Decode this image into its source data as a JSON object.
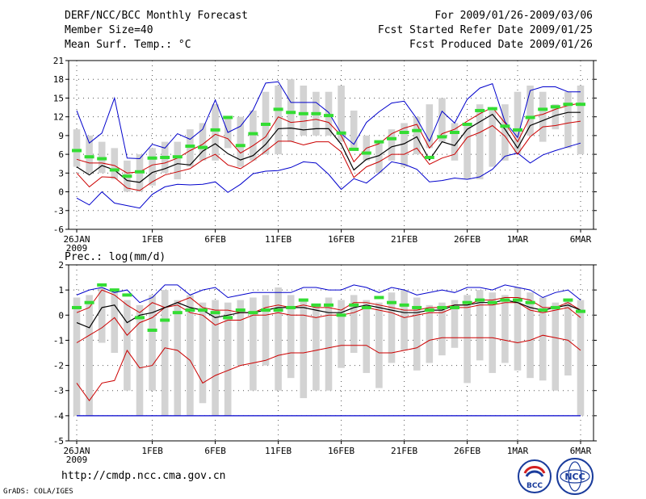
{
  "header": {
    "title": "DERF/NCC/BCC Monthly Forecast",
    "member_size": "Member Size=40",
    "variable": "Mean Surf. Temp.: °C",
    "period": "For 2009/01/26-2009/03/06",
    "fcst_started": "Fcst Started Refer Date 2009/01/25",
    "fcst_produced": "Fcst Produced Date 2009/01/26"
  },
  "footer": {
    "url": "http://cmdp.ncc.cma.gov.cn",
    "grads": "GrADS: COLA/IGES",
    "logo_left_text": "BCC",
    "logo_right_text": "NCC"
  },
  "colors": {
    "box": "#d3d3d3",
    "median": "#33dd33",
    "mean": "#000000",
    "sd": "#cc0000",
    "envelope": "#0000cc",
    "grid": "#555555"
  },
  "chart_data": [
    {
      "type": "box-line",
      "title": "Mean Surf. Temp.: °C",
      "x_tick_labels": [
        "26JAN",
        "1FEB",
        "6FEB",
        "11FEB",
        "16FEB",
        "21FEB",
        "26FEB",
        "1MAR",
        "6MAR"
      ],
      "x_tick_days": [
        0,
        6,
        11,
        16,
        21,
        26,
        31,
        35,
        40
      ],
      "x_year_label": "2009",
      "ylim": [
        -6,
        21
      ],
      "yticks": [
        -6,
        -3,
        0,
        3,
        6,
        9,
        12,
        15,
        18,
        21
      ],
      "grid": true,
      "days": [
        0,
        1,
        2,
        3,
        4,
        5,
        6,
        7,
        8,
        9,
        10,
        11,
        12,
        13,
        14,
        15,
        16,
        17,
        18,
        19,
        20,
        21,
        22,
        23,
        24,
        25,
        26,
        27,
        28,
        29,
        30,
        31,
        32,
        33,
        34,
        35,
        36,
        37,
        38,
        39,
        40
      ],
      "box_low": [
        4,
        3,
        3,
        2,
        0,
        0,
        1,
        3,
        2,
        4,
        5,
        5,
        7,
        4,
        5,
        6,
        6,
        8,
        9,
        9,
        9,
        8,
        7,
        5,
        3,
        5,
        4,
        6,
        7,
        8,
        5,
        2,
        2,
        4,
        5,
        6,
        9,
        8,
        10,
        7,
        6
      ],
      "box_high": [
        10,
        9,
        8,
        7,
        5,
        6,
        7,
        8,
        8,
        10,
        11,
        14,
        12,
        12,
        13,
        16,
        17,
        18,
        17,
        16,
        16,
        17,
        13,
        9,
        8,
        10,
        11,
        12,
        14,
        15,
        11,
        11,
        14,
        13,
        14,
        16,
        17,
        16,
        14,
        16,
        17
      ],
      "median": [
        6.6,
        5.6,
        5.3,
        3.5,
        2.5,
        3.2,
        5.4,
        5.5,
        5.6,
        7.3,
        7.1,
        9.9,
        11.9,
        7.4,
        9.3,
        10.8,
        13.2,
        12.7,
        12.5,
        12.5,
        12.2,
        9.4,
        6.8,
        6.2,
        8.0,
        8.5,
        9.5,
        9.8,
        5.5,
        8.8,
        9.5,
        10.8,
        13.0,
        13.3,
        10.5,
        9.9,
        11.9,
        13.2,
        13.6,
        14,
        14
      ],
      "mean": [
        4.0,
        2.7,
        4.2,
        3.5,
        1.8,
        1.5,
        3.1,
        3.7,
        4.5,
        4.3,
        6.5,
        7.7,
        6.1,
        5.1,
        5.8,
        7.6,
        10.1,
        10.2,
        9.9,
        10.1,
        10.1,
        7.6,
        3.5,
        5.2,
        5.8,
        7.2,
        7.7,
        8.8,
        5.1,
        8.0,
        7.4,
        10.0,
        11.2,
        12.4,
        10.0,
        7.0,
        10.6,
        11.4,
        12.2,
        12.7,
        12.7
      ],
      "sd_upper": [
        5.2,
        4.6,
        4.6,
        4.2,
        3.0,
        3.2,
        4.3,
        4.6,
        5.4,
        6.6,
        7.6,
        9.2,
        8.5,
        6.2,
        7.4,
        8.8,
        12.0,
        11.1,
        11.3,
        11.6,
        11.1,
        9.0,
        4.8,
        7.0,
        7.7,
        9.3,
        10.2,
        10.8,
        7.0,
        9.3,
        10.0,
        11.3,
        12.5,
        13.5,
        11.0,
        8.0,
        12.0,
        12.4,
        13.2,
        13.8,
        14.2
      ],
      "sd_lower": [
        3.0,
        0.8,
        2.4,
        2.3,
        0.6,
        0.2,
        1.6,
        2.7,
        3.2,
        3.7,
        5.1,
        6.0,
        4.3,
        3.7,
        5.0,
        6.5,
        8.1,
        8.1,
        7.5,
        8.0,
        8.0,
        6.4,
        2.3,
        4.0,
        4.8,
        6.0,
        6.0,
        7.0,
        4.4,
        5.4,
        6.0,
        8.7,
        9.5,
        10.6,
        8.9,
        6.0,
        8.8,
        10.4,
        10.6,
        11.0,
        11.3
      ],
      "max": [
        13,
        7.8,
        9.4,
        15,
        5.4,
        5.3,
        7.6,
        7.0,
        9.3,
        8.4,
        10.0,
        14.7,
        9.5,
        10.5,
        13.1,
        17.4,
        17.6,
        14.3,
        14.3,
        14.3,
        12.7,
        9.3,
        7.6,
        11.1,
        12.8,
        14.2,
        14.5,
        11.7,
        8.1,
        12.9,
        11.0,
        14.8,
        16.6,
        17.3,
        11.2,
        8.7,
        16.2,
        16.8,
        16.8,
        16,
        16
      ],
      "min": [
        -1,
        -2.1,
        0.0,
        -1.8,
        -2.2,
        -2.6,
        -0.4,
        0.8,
        1.2,
        1.1,
        1.2,
        1.6,
        -0.1,
        1.2,
        2.9,
        3.3,
        3.4,
        3.9,
        4.8,
        4.6,
        2.8,
        0.4,
        2.1,
        1.4,
        3.0,
        4.8,
        4.4,
        3.6,
        1.6,
        1.8,
        2.2,
        2.0,
        2.4,
        3.6,
        5.7,
        6.2,
        4.6,
        5.9,
        6.6,
        7.2,
        7.8
      ]
    },
    {
      "type": "box-line",
      "title": "Prec.: log(mm/d)",
      "x_tick_labels": [
        "26JAN",
        "1FEB",
        "6FEB",
        "11FEB",
        "16FEB",
        "21FEB",
        "26FEB",
        "1MAR",
        "6MAR"
      ],
      "x_tick_days": [
        0,
        6,
        11,
        16,
        21,
        26,
        31,
        35,
        40
      ],
      "x_year_label": "2009",
      "ylim": [
        -5,
        2
      ],
      "yticks": [
        -5,
        -4,
        -3,
        -2,
        -1,
        0,
        1,
        2
      ],
      "grid": true,
      "days": [
        0,
        1,
        2,
        3,
        4,
        5,
        6,
        7,
        8,
        9,
        10,
        11,
        12,
        13,
        14,
        15,
        16,
        17,
        18,
        19,
        20,
        21,
        22,
        23,
        24,
        25,
        26,
        27,
        28,
        29,
        30,
        31,
        32,
        33,
        34,
        35,
        36,
        37,
        38,
        39,
        40
      ],
      "box_low": [
        -4,
        -4,
        -1.1,
        -1.5,
        -3,
        -4,
        -3,
        -4,
        -4,
        -4,
        -3.5,
        -4,
        -4,
        -2,
        -3,
        -2,
        -3,
        -2.5,
        -3.3,
        -3,
        -3,
        -2.1,
        -1.5,
        -2.3,
        -2.9,
        -1.9,
        -1.4,
        -2.2,
        -1.9,
        -1.6,
        -1.3,
        -2.7,
        -1.8,
        -2.3,
        -1.9,
        -2.2,
        -2.5,
        -2.6,
        -3,
        -2.4,
        -4
      ],
      "box_high": [
        0.7,
        0.8,
        1.1,
        1.0,
        0.6,
        0.4,
        0.8,
        1.0,
        0.6,
        0.8,
        0.5,
        0.6,
        0.5,
        0.6,
        0.7,
        0.8,
        1.1,
        0.8,
        0.6,
        0.4,
        0.7,
        0.6,
        0.8,
        0.6,
        0.5,
        0.9,
        1.0,
        0.7,
        0.4,
        0.5,
        0.6,
        0.8,
        1.0,
        0.9,
        0.8,
        1.1,
        0.9,
        0.7,
        0.5,
        0.6,
        0.6
      ],
      "median": [
        0.3,
        0.5,
        1.2,
        1.0,
        0.8,
        -0.1,
        -0.6,
        -0.2,
        0.1,
        0.2,
        0.2,
        0.1,
        -0.1,
        0.2,
        0.1,
        0.2,
        0.2,
        0.3,
        0.6,
        0.4,
        0.4,
        0.0,
        0.4,
        0.3,
        0.7,
        0.5,
        0.4,
        0.3,
        0.2,
        0.3,
        0.3,
        0.5,
        0.6,
        0.5,
        0.6,
        0.6,
        0.5,
        0.2,
        0.3,
        0.6,
        0.15
      ],
      "mean": [
        -0.3,
        -0.5,
        0.3,
        0.4,
        -0.3,
        0.0,
        0.1,
        0.3,
        0.5,
        0.3,
        0.2,
        -0.1,
        0.0,
        0.1,
        0.1,
        0.2,
        0.3,
        0.3,
        0.3,
        0.2,
        0.1,
        0.1,
        0.3,
        0.4,
        0.3,
        0.2,
        0.1,
        0.1,
        0.2,
        0.2,
        0.4,
        0.4,
        0.5,
        0.5,
        0.6,
        0.5,
        0.3,
        0.2,
        0.3,
        0.4,
        0.2
      ],
      "sd_upper": [
        0.1,
        0.3,
        1.0,
        0.8,
        0.4,
        0.1,
        0.5,
        0.3,
        0.5,
        0.7,
        0.3,
        0.2,
        0.2,
        0.1,
        0.1,
        0.3,
        0.4,
        0.3,
        0.4,
        0.3,
        0.3,
        0.2,
        0.5,
        0.5,
        0.4,
        0.3,
        0.2,
        0.2,
        0.3,
        0.3,
        0.4,
        0.4,
        0.6,
        0.6,
        0.7,
        0.7,
        0.6,
        0.3,
        0.3,
        0.5,
        0.2
      ],
      "sd_lower": [
        -1.1,
        -0.8,
        -0.5,
        -0.1,
        -0.8,
        -0.3,
        -0.1,
        0.3,
        0.4,
        0.1,
        0.0,
        -0.4,
        -0.2,
        -0.2,
        0.0,
        0.0,
        0.1,
        0.0,
        0.0,
        -0.1,
        0.0,
        0.0,
        0.1,
        0.3,
        0.2,
        0.1,
        -0.1,
        0.0,
        0.1,
        0.1,
        0.3,
        0.3,
        0.4,
        0.4,
        0.5,
        0.5,
        0.2,
        0.1,
        0.2,
        0.3,
        -0.1
      ],
      "max": [
        0.8,
        1.0,
        1.1,
        0.9,
        1.0,
        0.5,
        0.7,
        1.2,
        1.2,
        0.8,
        1.0,
        1.1,
        0.7,
        0.8,
        0.9,
        0.9,
        0.9,
        0.9,
        1.1,
        1.1,
        1.0,
        1.0,
        1.2,
        1.1,
        0.9,
        1.1,
        1.0,
        0.8,
        0.9,
        1.0,
        0.9,
        1.1,
        1.1,
        1.0,
        1.2,
        1.1,
        1.0,
        0.7,
        0.9,
        1.0,
        0.6
      ],
      "min": [
        -2.7,
        -3.4,
        -2.7,
        -2.6,
        -1.4,
        -2.1,
        -2.0,
        -1.3,
        -1.4,
        -1.8,
        -2.7,
        -2.4,
        -2.2,
        -2.0,
        -1.9,
        -1.8,
        -1.6,
        -1.5,
        -1.5,
        -1.4,
        -1.3,
        -1.2,
        -1.2,
        -1.2,
        -1.5,
        -1.5,
        -1.4,
        -1.3,
        -1.0,
        -0.9,
        -0.9,
        -0.9,
        -0.9,
        -0.9,
        -1.0,
        -1.1,
        -1.0,
        -0.8,
        -0.9,
        -1.0,
        -1.4
      ],
      "floor": -4
    }
  ]
}
